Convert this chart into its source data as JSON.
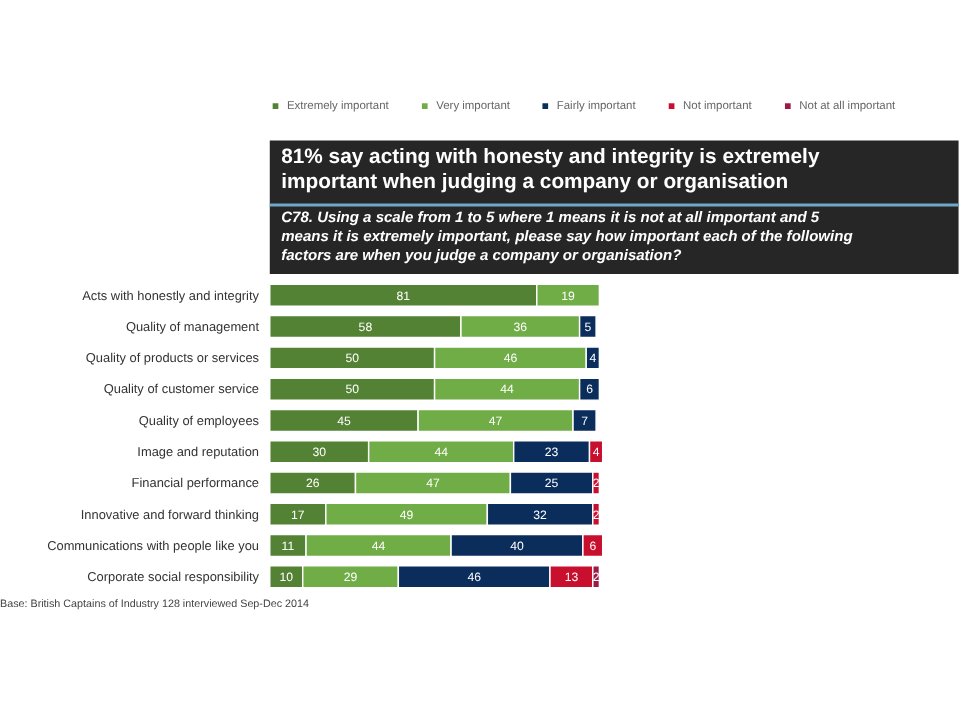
{
  "chart_data": {
    "type": "bar",
    "orientation": "horizontal",
    "stacked": true,
    "data_labels": true,
    "legend": "top",
    "grid": false,
    "title": "81% say acting with honesty and integrity is extremely important when judging a company or organisation",
    "subtitle": "C78. Using a scale from 1 to 5 where 1 means it is not at all important and 5 means it is extremely important, please say how important each of the following factors are when you judge a company or organisation?",
    "annotations": [
      "Base: British Captains of Industry 128 interviewed Sep-Dec 2014"
    ],
    "categories": [
      "Acts with honestly and integrity",
      "Quality of management",
      "Quality of products or services",
      "Quality of customer service",
      "Quality of employees",
      "Image and reputation",
      "Financial performance",
      "Innovative and forward thinking",
      "Communications with people like you",
      "Corporate social responsibility"
    ],
    "series": [
      {
        "name": "Extremely important",
        "color": "#548235",
        "values": [
          81,
          58,
          50,
          50,
          45,
          30,
          26,
          17,
          11,
          10
        ]
      },
      {
        "name": "Very important",
        "color": "#70ad47",
        "values": [
          19,
          36,
          46,
          44,
          47,
          44,
          47,
          49,
          44,
          29
        ]
      },
      {
        "name": "Fairly important",
        "color": "#0b2d5b",
        "values": [
          null,
          5,
          4,
          6,
          7,
          23,
          25,
          32,
          40,
          46
        ]
      },
      {
        "name": "Not important",
        "color": "#c8102e",
        "values": [
          null,
          null,
          null,
          null,
          null,
          4,
          2,
          2,
          6,
          13
        ]
      },
      {
        "name": "Not at all important",
        "color": "#9b1b45",
        "values": [
          null,
          null,
          null,
          null,
          null,
          null,
          null,
          null,
          null,
          2
        ]
      }
    ]
  }
}
